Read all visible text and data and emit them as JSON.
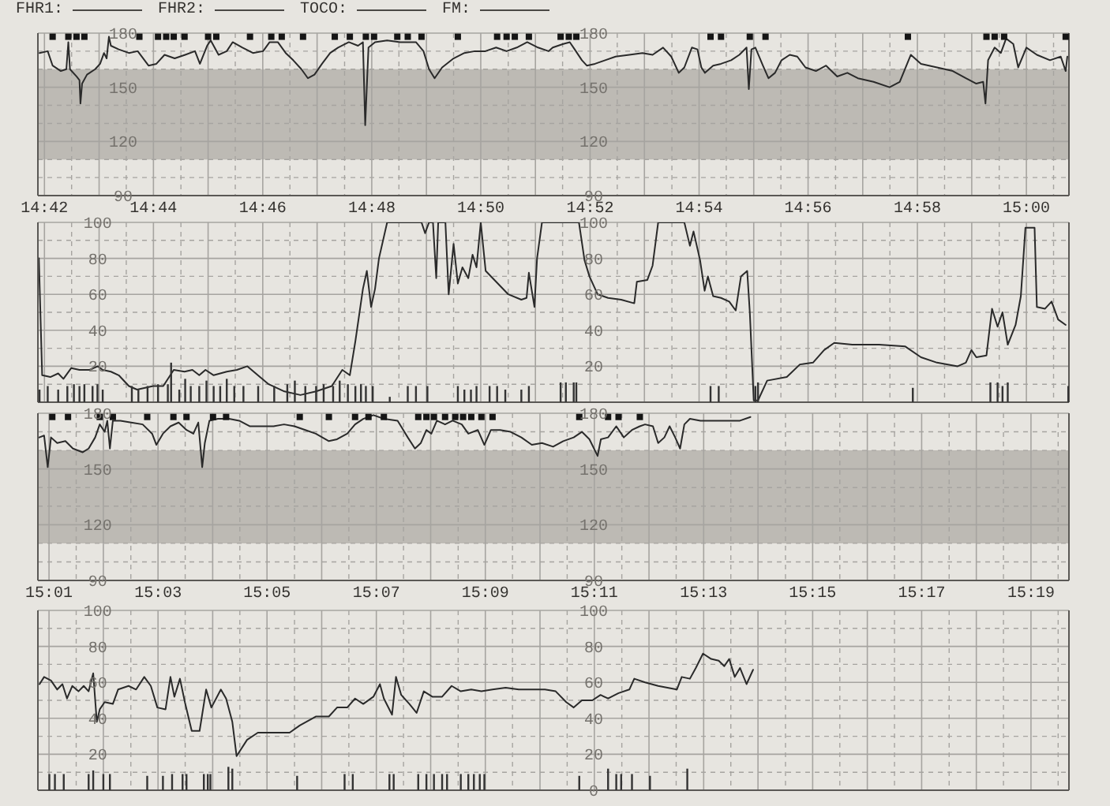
{
  "chart_data": [
    {
      "type": "line",
      "annotations": [
        "FHR1:",
        "FHR2:",
        "TOCO:",
        "FM:"
      ],
      "xlim": [
        14.698,
        15.013
      ],
      "xticks": [
        {
          "value": 14.7,
          "label": "14:42"
        },
        {
          "value": 14.7083,
          "label": null
        },
        {
          "value": 14.7167,
          "label": null
        },
        {
          "value": 14.725,
          "label": null
        },
        {
          "value": 14.7333,
          "label": "14:44"
        },
        {
          "value": 14.7417,
          "label": null
        },
        {
          "value": 14.75,
          "label": null
        },
        {
          "value": 14.7583,
          "label": null
        },
        {
          "value": 14.7667,
          "label": "14:46"
        },
        {
          "value": 14.775,
          "label": null
        },
        {
          "value": 14.7833,
          "label": null
        },
        {
          "value": 14.7917,
          "label": null
        },
        {
          "value": 14.8,
          "label": "14:48"
        },
        {
          "value": 14.8083,
          "label": null
        },
        {
          "value": 14.8167,
          "label": null
        },
        {
          "value": 14.825,
          "label": null
        },
        {
          "value": 14.8333,
          "label": "14:50"
        },
        {
          "value": 14.8417,
          "label": null
        },
        {
          "value": 14.85,
          "label": null
        },
        {
          "value": 14.8583,
          "label": null
        },
        {
          "value": 14.8667,
          "label": "14:52"
        },
        {
          "value": 14.875,
          "label": null
        },
        {
          "value": 14.8833,
          "label": null
        },
        {
          "value": 14.8917,
          "label": null
        },
        {
          "value": 14.9,
          "label": "14:54"
        },
        {
          "value": 14.9083,
          "label": null
        },
        {
          "value": 14.9167,
          "label": null
        },
        {
          "value": 14.925,
          "label": null
        },
        {
          "value": 14.9333,
          "label": "14:56"
        },
        {
          "value": 14.9417,
          "label": null
        },
        {
          "value": 14.95,
          "label": null
        },
        {
          "value": 14.9583,
          "label": null
        },
        {
          "value": 14.9667,
          "label": "14:58"
        },
        {
          "value": 14.975,
          "label": null
        },
        {
          "value": 14.9833,
          "label": null
        },
        {
          "value": 14.9917,
          "label": null
        },
        {
          "value": 15.0,
          "label": "15:00"
        },
        {
          "value": 15.0083,
          "label": null
        }
      ],
      "ylim": [
        90,
        180
      ],
      "yticks": [
        90,
        {
          "value": 100,
          "label": null
        },
        {
          "value": 110,
          "label": null
        },
        120,
        {
          "value": 130,
          "label": null
        },
        {
          "value": 140,
          "label": null
        },
        150,
        {
          "value": 160,
          "label": null
        },
        {
          "value": 170,
          "label": null
        },
        180
      ],
      "y2lim": [
        90,
        180
      ],
      "y2ticks": [
        90,
        120,
        150,
        180
      ],
      "grid": true,
      "bands": [
        {
          "axis": "y",
          "from": 110,
          "to": 160,
          "color": "#bdbab4"
        }
      ],
      "series": [
        {
          "type": "line",
          "color": "#2a2a2a",
          "x": [
            14.6985,
            14.701,
            14.7025,
            14.705,
            14.7067,
            14.7073,
            14.7078,
            14.7098,
            14.7107,
            14.711,
            14.7115,
            14.713,
            14.7155,
            14.717,
            14.7182,
            14.719,
            14.7197,
            14.7203,
            14.7227,
            14.7258,
            14.7285,
            14.7318,
            14.7342,
            14.7367,
            14.7398,
            14.743,
            14.746,
            14.7475,
            14.7497,
            14.7508,
            14.7532,
            14.7557,
            14.7575,
            14.7605,
            14.7637,
            14.7668,
            14.7688,
            14.7713,
            14.7737,
            14.776,
            14.7785,
            14.7805,
            14.7825,
            14.7848,
            14.7873,
            14.7897,
            14.793,
            14.7958,
            14.7973,
            14.798,
            14.799,
            14.801,
            14.8047,
            14.8087,
            14.8135,
            14.8158,
            14.8175,
            14.8192,
            14.8215,
            14.825,
            14.8283,
            14.8315,
            14.8347,
            14.838,
            14.8412,
            14.8443,
            14.8475,
            14.8508,
            14.854,
            14.8553,
            14.8585,
            14.8605,
            14.862,
            14.8642,
            14.8657,
            14.8682,
            14.8713,
            14.8745,
            14.8787,
            14.8827,
            14.8858,
            14.889,
            14.8915,
            14.8938,
            14.8955,
            14.8978,
            14.8995,
            14.9007,
            14.9018,
            14.9043,
            14.9067,
            14.9098,
            14.9123,
            14.9145,
            14.9152,
            14.916,
            14.9172,
            14.9195,
            14.9212,
            14.9232,
            14.9252,
            14.9277,
            14.93,
            14.9325,
            14.9357,
            14.9388,
            14.9422,
            14.9453,
            14.9485,
            14.9533,
            14.9582,
            14.9613,
            14.9647,
            14.9678,
            14.9727,
            14.9775,
            14.9815,
            14.9847,
            14.9868,
            14.9875,
            14.9883,
            14.9903,
            14.9922,
            14.9938,
            14.996,
            14.9975,
            15.0,
            15.0032,
            15.0072,
            15.0105,
            15.012,
            15.0125
          ],
          "values": [
            169,
            170,
            162,
            159,
            160,
            175,
            160,
            156,
            154,
            141,
            152,
            157,
            160,
            163,
            169,
            166,
            178,
            173,
            171,
            169,
            170,
            162,
            163,
            168,
            166,
            168,
            170,
            163,
            173,
            176,
            168,
            170,
            175,
            172,
            169,
            170,
            175,
            175,
            169,
            165,
            160,
            155,
            157,
            163,
            169,
            172,
            175,
            173,
            175,
            129,
            172,
            175,
            176,
            175,
            175,
            170,
            160,
            155,
            161,
            166,
            169,
            170,
            170,
            172,
            170,
            172,
            175,
            172,
            170,
            172,
            174,
            175,
            171,
            165,
            162,
            163,
            165,
            167,
            168,
            169,
            168,
            172,
            167,
            158,
            161,
            172,
            171,
            161,
            158,
            162,
            163,
            165,
            168,
            172,
            149,
            171,
            172,
            162,
            155,
            158,
            165,
            168,
            167,
            161,
            159,
            162,
            156,
            158,
            155,
            153,
            150,
            153,
            168,
            163,
            161,
            159,
            155,
            152,
            153,
            141,
            165,
            172,
            169,
            177,
            174,
            161,
            172,
            168,
            165,
            167,
            159,
            167
          ]
        },
        {
          "type": "scatter",
          "marker": "square",
          "color": "#151515",
          "x": [
            14.7025,
            14.7073,
            14.7098,
            14.7122,
            14.729,
            14.7347,
            14.7372,
            14.7395,
            14.7428,
            14.75,
            14.7525,
            14.7628,
            14.7693,
            14.7725,
            14.779,
            14.7887,
            14.7933,
            14.7982,
            14.8007,
            14.8078,
            14.811,
            14.8152,
            14.8263,
            14.8383,
            14.8412,
            14.8437,
            14.848,
            14.8577,
            14.8602,
            14.8625,
            14.9035,
            14.9067,
            14.9155,
            14.9203,
            14.9638,
            14.9878,
            14.9903,
            14.9932,
            15.012
          ],
          "values": [
            178,
            178,
            178,
            178,
            178,
            178,
            178,
            178,
            178,
            178,
            178,
            178,
            178,
            178,
            178,
            178,
            178,
            178,
            178,
            178,
            178,
            178,
            178,
            178,
            178,
            178,
            178,
            178,
            178,
            178,
            178,
            178,
            178,
            178,
            178,
            178,
            178,
            178,
            178
          ]
        }
      ]
    },
    {
      "type": "line",
      "tick_labels": "y",
      "xlim": [
        14.698,
        15.013
      ],
      "xticks": [
        {
          "value": 14.7,
          "label": null
        },
        {
          "value": 14.7083,
          "label": null
        },
        {
          "value": 14.7167,
          "label": null
        },
        {
          "value": 14.725,
          "label": null
        },
        {
          "value": 14.7333,
          "label": null
        },
        {
          "value": 14.7417,
          "label": null
        },
        {
          "value": 14.75,
          "label": null
        },
        {
          "value": 14.7583,
          "label": null
        },
        {
          "value": 14.7667,
          "label": null
        },
        {
          "value": 14.775,
          "label": null
        },
        {
          "value": 14.7833,
          "label": null
        },
        {
          "value": 14.7917,
          "label": null
        },
        {
          "value": 14.8,
          "label": null
        },
        {
          "value": 14.8083,
          "label": null
        },
        {
          "value": 14.8167,
          "label": null
        },
        {
          "value": 14.825,
          "label": null
        },
        {
          "value": 14.8333,
          "label": null
        },
        {
          "value": 14.8417,
          "label": null
        },
        {
          "value": 14.85,
          "label": null
        },
        {
          "value": 14.8583,
          "label": null
        },
        {
          "value": 14.8667,
          "label": null
        },
        {
          "value": 14.875,
          "label": null
        },
        {
          "value": 14.8833,
          "label": null
        },
        {
          "value": 14.8917,
          "label": null
        },
        {
          "value": 14.9,
          "label": null
        },
        {
          "value": 14.9083,
          "label": null
        },
        {
          "value": 14.9167,
          "label": null
        },
        {
          "value": 14.925,
          "label": null
        },
        {
          "value": 14.9333,
          "label": null
        },
        {
          "value": 14.9417,
          "label": null
        },
        {
          "value": 14.95,
          "label": null
        },
        {
          "value": 14.9583,
          "label": null
        },
        {
          "value": 14.9667,
          "label": null
        },
        {
          "value": 14.975,
          "label": null
        },
        {
          "value": 14.9833,
          "label": null
        },
        {
          "value": 14.9917,
          "label": null
        },
        {
          "value": 15.0,
          "label": null
        },
        {
          "value": 15.0083,
          "label": null
        }
      ],
      "ylim": [
        0,
        100
      ],
      "yticks": [
        {
          "value": 0,
          "label": null
        },
        {
          "value": 10,
          "label": null
        },
        20,
        {
          "value": 30,
          "label": null
        },
        40,
        {
          "value": 50,
          "label": null
        },
        60,
        {
          "value": 70,
          "label": null
        },
        80,
        {
          "value": 90,
          "label": null
        },
        100
      ],
      "y2lim": [
        0,
        100
      ],
      "y2ticks": [
        20,
        40,
        60,
        80,
        100
      ],
      "grid": true,
      "series": [
        {
          "type": "line",
          "color": "#2a2a2a",
          "x": [
            14.6983,
            14.6993,
            14.7018,
            14.7042,
            14.7058,
            14.7082,
            14.7107,
            14.7138,
            14.7163,
            14.7178,
            14.7203,
            14.7227,
            14.7258,
            14.7283,
            14.7332,
            14.7363,
            14.7395,
            14.7428,
            14.7452,
            14.7473,
            14.7492,
            14.7517,
            14.7557,
            14.7588,
            14.762,
            14.7652,
            14.7685,
            14.7733,
            14.7782,
            14.783,
            14.7878,
            14.791,
            14.7933,
            14.795,
            14.7973,
            14.7985,
            14.7998,
            14.801,
            14.8022,
            14.8047,
            14.8152,
            14.8163,
            14.8175,
            14.8187,
            14.8197,
            14.8203,
            14.8225,
            14.8235,
            14.825,
            14.8263,
            14.8277,
            14.8295,
            14.8308,
            14.832,
            14.8333,
            14.8348,
            14.838,
            14.8417,
            14.8457,
            14.8473,
            14.848,
            14.8497,
            14.8505,
            14.852,
            14.8633,
            14.865,
            14.8665,
            14.869,
            14.8722,
            14.8762,
            14.8802,
            14.881,
            14.8842,
            14.8858,
            14.8875,
            14.8955,
            14.8972,
            14.8983,
            14.9003,
            14.9017,
            14.9027,
            14.9043,
            14.9067,
            14.9092,
            14.9112,
            14.9128,
            14.9147,
            14.9155,
            14.9167,
            14.918,
            14.9208,
            14.9268,
            14.9308,
            14.9348,
            14.9382,
            14.9413,
            14.9468,
            14.955,
            14.963,
            14.9678,
            14.9727,
            14.979,
            14.9815,
            14.9832,
            14.9847,
            14.9878,
            14.9895,
            14.9912,
            14.9927,
            14.9943,
            14.9967,
            14.9983,
            14.9997,
            15.0025,
            15.0032,
            15.0057,
            15.0077,
            15.0097,
            15.012
          ],
          "values": [
            80,
            15,
            14,
            16,
            13,
            19,
            18,
            18,
            20,
            18,
            17,
            15,
            9,
            7,
            9,
            9,
            18,
            17,
            18,
            15,
            18,
            15,
            17,
            18,
            20,
            15,
            10,
            6,
            4,
            6,
            9,
            18,
            15,
            34,
            63,
            73,
            53,
            63,
            80,
            100,
            100,
            94,
            100,
            100,
            69,
            100,
            100,
            60,
            88,
            66,
            75,
            69,
            82,
            75,
            100,
            73,
            67,
            60,
            57,
            58,
            72,
            53,
            80,
            100,
            100,
            79,
            70,
            60,
            58,
            57,
            55,
            67,
            68,
            76,
            100,
            100,
            87,
            95,
            79,
            62,
            70,
            59,
            58,
            56,
            51,
            70,
            73,
            50,
            1,
            1,
            12,
            14,
            21,
            22,
            29,
            33,
            32,
            32,
            31,
            25,
            22,
            20,
            22,
            29,
            25,
            26,
            52,
            42,
            50,
            32,
            43,
            59,
            97,
            97,
            53,
            52,
            56,
            46,
            43
          ]
        },
        {
          "type": "bar",
          "color": "#333333",
          "x": [
            14.6985,
            14.701,
            14.7042,
            14.707,
            14.709,
            14.7107,
            14.7122,
            14.7147,
            14.7162,
            14.7178,
            14.7267,
            14.7287,
            14.7315,
            14.7347,
            14.7377,
            14.7387,
            14.7412,
            14.743,
            14.7447,
            14.7473,
            14.7495,
            14.7517,
            14.7537,
            14.7557,
            14.758,
            14.7608,
            14.7653,
            14.7702,
            14.7742,
            14.7765,
            14.7797,
            14.783,
            14.7853,
            14.7882,
            14.7902,
            14.7927,
            14.795,
            14.7967,
            14.7982,
            14.8003,
            14.8055,
            14.811,
            14.8135,
            14.817,
            14.8263,
            14.8283,
            14.8303,
            14.832,
            14.836,
            14.8383,
            14.8408,
            14.8457,
            14.848,
            14.8577,
            14.8593,
            14.8617,
            14.8625,
            14.9035,
            14.906,
            14.9172,
            14.918,
            14.9653,
            14.989,
            14.9912,
            14.9927,
            14.9943,
            15.0128
          ],
          "values": [
            7,
            9,
            7,
            9,
            10,
            9,
            10,
            9,
            10,
            7,
            9,
            7,
            9,
            10,
            10,
            22,
            7,
            13,
            9,
            9,
            12,
            9,
            9,
            13,
            9,
            9,
            9,
            9,
            10,
            12,
            9,
            9,
            10,
            9,
            12,
            10,
            9,
            10,
            9,
            9,
            3,
            9,
            9,
            9,
            9,
            7,
            7,
            9,
            9,
            9,
            7,
            7,
            9,
            11,
            11,
            11,
            11,
            9,
            9,
            9,
            11,
            8,
            11,
            11,
            9,
            11,
            9
          ]
        }
      ]
    },
    {
      "type": "line",
      "xlim": [
        15.0133,
        15.3283
      ],
      "xticks": [
        {
          "value": 15.0167,
          "label": "15:01"
        },
        {
          "value": 15.025,
          "label": null
        },
        {
          "value": 15.0333,
          "label": null
        },
        {
          "value": 15.0417,
          "label": null
        },
        {
          "value": 15.05,
          "label": "15:03"
        },
        {
          "value": 15.0583,
          "label": null
        },
        {
          "value": 15.0667,
          "label": null
        },
        {
          "value": 15.075,
          "label": null
        },
        {
          "value": 15.0833,
          "label": "15:05"
        },
        {
          "value": 15.0917,
          "label": null
        },
        {
          "value": 15.1,
          "label": null
        },
        {
          "value": 15.1083,
          "label": null
        },
        {
          "value": 15.1167,
          "label": "15:07"
        },
        {
          "value": 15.125,
          "label": null
        },
        {
          "value": 15.1333,
          "label": null
        },
        {
          "value": 15.1417,
          "label": null
        },
        {
          "value": 15.15,
          "label": "15:09"
        },
        {
          "value": 15.1583,
          "label": null
        },
        {
          "value": 15.1667,
          "label": null
        },
        {
          "value": 15.175,
          "label": null
        },
        {
          "value": 15.1833,
          "label": "15:11"
        },
        {
          "value": 15.1917,
          "label": null
        },
        {
          "value": 15.2,
          "label": null
        },
        {
          "value": 15.2083,
          "label": null
        },
        {
          "value": 15.2167,
          "label": "15:13"
        },
        {
          "value": 15.225,
          "label": null
        },
        {
          "value": 15.2333,
          "label": null
        },
        {
          "value": 15.2417,
          "label": null
        },
        {
          "value": 15.25,
          "label": "15:15"
        },
        {
          "value": 15.2583,
          "label": null
        },
        {
          "value": 15.2667,
          "label": null
        },
        {
          "value": 15.275,
          "label": null
        },
        {
          "value": 15.2833,
          "label": "15:17"
        },
        {
          "value": 15.2917,
          "label": null
        },
        {
          "value": 15.3,
          "label": null
        },
        {
          "value": 15.3083,
          "label": null
        },
        {
          "value": 15.3167,
          "label": "15:19"
        },
        {
          "value": 15.325,
          "label": null
        }
      ],
      "ylim": [
        90,
        180
      ],
      "yticks": [
        90,
        {
          "value": 100,
          "label": null
        },
        {
          "value": 110,
          "label": null
        },
        120,
        {
          "value": 130,
          "label": null
        },
        {
          "value": 140,
          "label": null
        },
        150,
        {
          "value": 160,
          "label": null
        },
        {
          "value": 170,
          "label": null
        },
        180
      ],
      "y2lim": [
        90,
        180
      ],
      "y2ticks": [
        90,
        120,
        150,
        180
      ],
      "grid": true,
      "bands": [
        {
          "axis": "y",
          "from": 110,
          "to": 160,
          "color": "#bdbab4"
        }
      ],
      "series": [
        {
          "type": "line",
          "color": "#2a2a2a",
          "x": [
            15.0137,
            15.0152,
            15.0163,
            15.0173,
            15.0192,
            15.0217,
            15.024,
            15.027,
            15.0288,
            15.0308,
            15.0322,
            15.0337,
            15.0345,
            15.0353,
            15.0362,
            15.0385,
            15.0418,
            15.0453,
            15.0482,
            15.0495,
            15.0515,
            15.0538,
            15.0563,
            15.0587,
            15.0608,
            15.0623,
            15.0635,
            15.0643,
            15.0657,
            15.0683,
            15.0717,
            15.0748,
            15.078,
            15.082,
            15.0853,
            15.0885,
            15.0917,
            15.095,
            15.0982,
            15.1022,
            15.1047,
            15.1078,
            15.1102,
            15.1127,
            15.1158,
            15.119,
            15.1232,
            15.1263,
            15.1285,
            15.1303,
            15.132,
            15.1335,
            15.1352,
            15.1377,
            15.14,
            15.1428,
            15.1448,
            15.1477,
            15.1497,
            15.1517,
            15.1545,
            15.1577,
            15.161,
            15.1642,
            15.1673,
            15.1707,
            15.1738,
            15.177,
            15.1795,
            15.1818,
            15.1843,
            15.1853,
            15.1875,
            15.19,
            15.1923,
            15.1948,
            15.1972,
            15.1988,
            15.2012,
            15.2028,
            15.2047,
            15.2063,
            15.208,
            15.2095,
            15.2108,
            15.2125,
            15.2157,
            15.2197,
            15.2238,
            15.2278,
            15.231
          ],
          "values": [
            167,
            168,
            151,
            167,
            164,
            165,
            161,
            159,
            161,
            167,
            174,
            170,
            176,
            161,
            176,
            176,
            175,
            174,
            169,
            163,
            169,
            173,
            175,
            171,
            169,
            175,
            151,
            164,
            176,
            177,
            177,
            176,
            173,
            173,
            173,
            174,
            173,
            171,
            169,
            165,
            166,
            169,
            174,
            177,
            179,
            177,
            176,
            167,
            161,
            164,
            171,
            169,
            176,
            174,
            176,
            174,
            169,
            171,
            163,
            171,
            171,
            170,
            167,
            163,
            164,
            162,
            165,
            167,
            170,
            166,
            157,
            166,
            167,
            173,
            167,
            171,
            173,
            174,
            173,
            164,
            167,
            173,
            167,
            161,
            174,
            177,
            176,
            176,
            176,
            176,
            178
          ]
        },
        {
          "type": "scatter",
          "marker": "square",
          "color": "#151515",
          "x": [
            15.0177,
            15.0225,
            15.0322,
            15.0362,
            15.0467,
            15.0547,
            15.0587,
            15.0668,
            15.0708,
            15.0933,
            15.1022,
            15.1102,
            15.1143,
            15.119,
            15.1295,
            15.132,
            15.1343,
            15.1377,
            15.1408,
            15.1432,
            15.1457,
            15.1488,
            15.1522,
            15.1787,
            15.1875,
            15.1907,
            15.1972
          ],
          "values": [
            178,
            178,
            178,
            178,
            178,
            178,
            178,
            178,
            178,
            178,
            178,
            178,
            178,
            178,
            178,
            178,
            178,
            178,
            178,
            178,
            178,
            178,
            178,
            178,
            178,
            178,
            178
          ]
        }
      ]
    },
    {
      "type": "line",
      "tick_labels": "y",
      "xlim": [
        15.0133,
        15.3283
      ],
      "xticks": [
        {
          "value": 15.0167,
          "label": null
        },
        {
          "value": 15.025,
          "label": null
        },
        {
          "value": 15.0333,
          "label": null
        },
        {
          "value": 15.0417,
          "label": null
        },
        {
          "value": 15.05,
          "label": null
        },
        {
          "value": 15.0583,
          "label": null
        },
        {
          "value": 15.0667,
          "label": null
        },
        {
          "value": 15.075,
          "label": null
        },
        {
          "value": 15.0833,
          "label": null
        },
        {
          "value": 15.0917,
          "label": null
        },
        {
          "value": 15.1,
          "label": null
        },
        {
          "value": 15.1083,
          "label": null
        },
        {
          "value": 15.1167,
          "label": null
        },
        {
          "value": 15.125,
          "label": null
        },
        {
          "value": 15.1333,
          "label": null
        },
        {
          "value": 15.1417,
          "label": null
        },
        {
          "value": 15.15,
          "label": null
        },
        {
          "value": 15.1583,
          "label": null
        },
        {
          "value": 15.1667,
          "label": null
        },
        {
          "value": 15.175,
          "label": null
        },
        {
          "value": 15.1833,
          "label": null
        },
        {
          "value": 15.1917,
          "label": null
        },
        {
          "value": 15.2,
          "label": null
        },
        {
          "value": 15.2083,
          "label": null
        },
        {
          "value": 15.2167,
          "label": null
        },
        {
          "value": 15.225,
          "label": null
        },
        {
          "value": 15.2333,
          "label": null
        },
        {
          "value": 15.2417,
          "label": null
        },
        {
          "value": 15.25,
          "label": null
        },
        {
          "value": 15.2583,
          "label": null
        },
        {
          "value": 15.2667,
          "label": null
        },
        {
          "value": 15.275,
          "label": null
        },
        {
          "value": 15.2833,
          "label": null
        },
        {
          "value": 15.2917,
          "label": null
        },
        {
          "value": 15.3,
          "label": null
        },
        {
          "value": 15.3083,
          "label": null
        },
        {
          "value": 15.3167,
          "label": null
        },
        {
          "value": 15.325,
          "label": null
        }
      ],
      "ylim": [
        0,
        100
      ],
      "yticks": [
        {
          "value": 0,
          "label": null
        },
        {
          "value": 10,
          "label": null
        },
        20,
        {
          "value": 30,
          "label": null
        },
        40,
        {
          "value": 50,
          "label": null
        },
        60,
        {
          "value": 70,
          "label": null
        },
        80,
        {
          "value": 90,
          "label": null
        },
        100
      ],
      "y2lim": [
        0,
        100
      ],
      "y2ticks": [
        0,
        20,
        40,
        60,
        80,
        100
      ],
      "grid": true,
      "series": [
        {
          "type": "line",
          "color": "#2a2a2a",
          "x": [
            15.0138,
            15.0152,
            15.0173,
            15.0192,
            15.0208,
            15.0222,
            15.0238,
            15.0257,
            15.0273,
            15.0288,
            15.0302,
            15.0313,
            15.0322,
            15.0337,
            15.0362,
            15.0378,
            15.041,
            15.0433,
            15.0458,
            15.0478,
            15.0498,
            15.0523,
            15.0538,
            15.055,
            15.0567,
            15.0582,
            15.0603,
            15.0627,
            15.0647,
            15.0663,
            15.0692,
            15.0708,
            15.0727,
            15.074,
            15.0772,
            15.0805,
            15.0853,
            15.0902,
            15.0933,
            15.0982,
            15.1022,
            15.1047,
            15.1078,
            15.1102,
            15.1127,
            15.1158,
            15.1178,
            15.119,
            15.1215,
            15.1227,
            15.1243,
            15.1268,
            15.129,
            15.1312,
            15.1338,
            15.1368,
            15.1397,
            15.1425,
            15.1457,
            15.1488,
            15.1522,
            15.1562,
            15.1602,
            15.1642,
            15.1682,
            15.1715,
            15.1747,
            15.177,
            15.1795,
            15.1827,
            15.1852,
            15.1875,
            15.1907,
            15.194,
            15.1955,
            15.1988,
            15.2028,
            15.2085,
            15.21,
            15.2125,
            15.2143,
            15.2165,
            15.219,
            15.2213,
            15.223,
            15.2245,
            15.2262,
            15.2278,
            15.2298,
            15.2318
          ],
          "values": [
            59,
            63,
            61,
            56,
            59,
            51,
            58,
            55,
            58,
            55,
            65,
            38,
            45,
            49,
            48,
            56,
            58,
            56,
            63,
            58,
            46,
            45,
            63,
            52,
            62,
            49,
            33,
            33,
            56,
            46,
            56,
            51,
            38,
            19,
            28,
            32,
            32,
            32,
            36,
            41,
            41,
            46,
            46,
            51,
            48,
            52,
            59,
            51,
            42,
            63,
            53,
            48,
            43,
            55,
            52,
            52,
            58,
            55,
            56,
            55,
            56,
            57,
            56,
            56,
            56,
            55,
            49,
            46,
            50,
            50,
            53,
            51,
            54,
            56,
            62,
            60,
            58,
            56,
            63,
            62,
            68,
            76,
            73,
            72,
            69,
            73,
            63,
            68,
            59,
            67
          ]
        },
        {
          "type": "bar",
          "color": "#333333",
          "x": [
            15.0168,
            15.0185,
            15.0212,
            15.0288,
            15.0302,
            15.0333,
            15.0353,
            15.0467,
            15.0515,
            15.0543,
            15.0575,
            15.0587,
            15.064,
            15.0652,
            15.066,
            15.0715,
            15.0727,
            15.0925,
            15.107,
            15.1095,
            15.1207,
            15.122,
            15.1295,
            15.132,
            15.1343,
            15.1368,
            15.1383,
            15.1425,
            15.1448,
            15.1465,
            15.1483,
            15.1497,
            15.1787,
            15.1875,
            15.19,
            15.1915,
            15.1948,
            15.2003,
            15.2117
          ],
          "values": [
            9,
            9,
            9,
            9,
            11,
            9,
            9,
            8,
            8,
            9,
            9,
            9,
            9,
            9,
            9,
            13,
            12,
            8,
            9,
            9,
            9,
            9,
            9,
            9,
            9,
            9,
            9,
            9,
            9,
            9,
            9,
            9,
            8,
            12,
            9,
            9,
            9,
            8,
            12
          ]
        }
      ]
    }
  ]
}
